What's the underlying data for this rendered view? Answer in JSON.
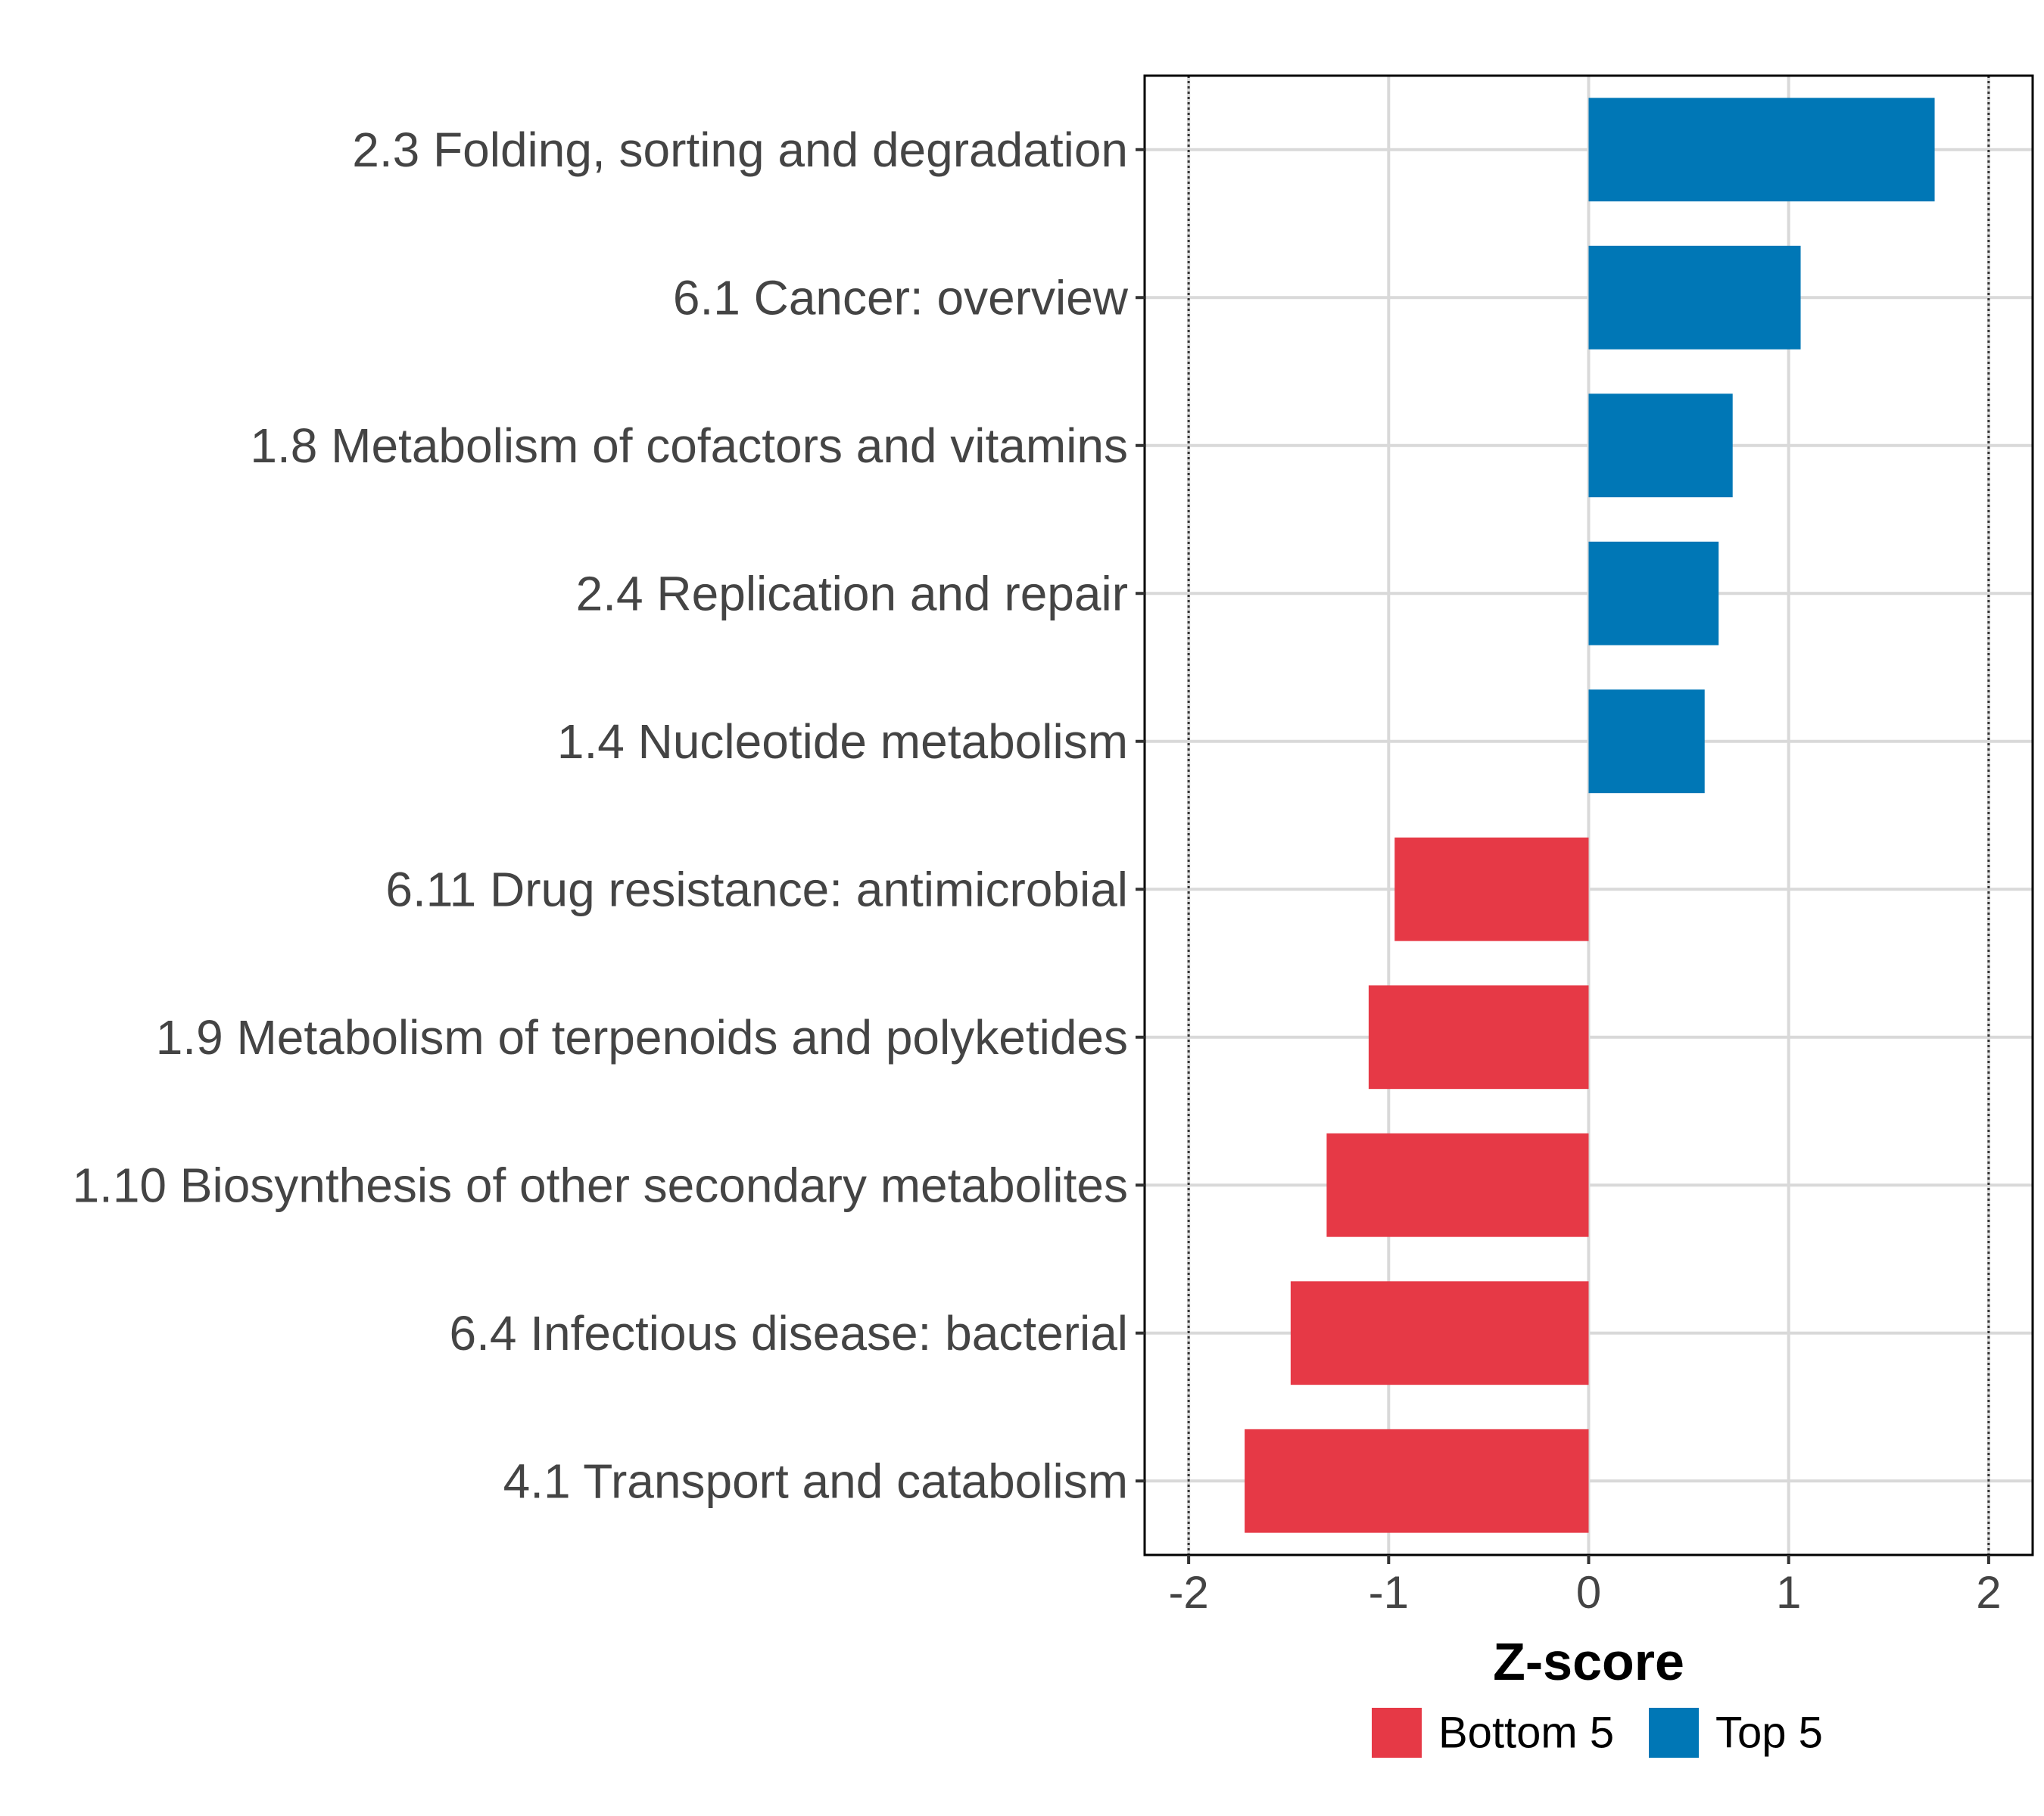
{
  "chart_data": {
    "type": "bar",
    "orientation": "horizontal",
    "title": "",
    "xlabel": "Z-score",
    "ylabel": "",
    "xlim": [
      -2.22,
      2.22
    ],
    "xticks": [
      -2,
      -1,
      0,
      1,
      2
    ],
    "xtick_labels": [
      "-2",
      "-1",
      "0",
      "1",
      "2"
    ],
    "reference_lines": [
      -2,
      2
    ],
    "grid": true,
    "categories": [
      "2.3 Folding, sorting and degradation",
      "6.1 Cancer: overview",
      "1.8 Metabolism of cofactors and vitamins",
      "2.4 Replication and repair",
      "1.4 Nucleotide metabolism",
      "6.11 Drug resistance: antimicrobial",
      "1.9 Metabolism of terpenoids and polyketides",
      "1.10 Biosynthesis of other secondary metabolites",
      "6.4 Infectious disease: bacterial",
      "4.1 Transport and catabolism"
    ],
    "values": [
      1.73,
      1.06,
      0.72,
      0.65,
      0.58,
      -0.97,
      -1.1,
      -1.31,
      -1.49,
      -1.72
    ],
    "groups": [
      "Top 5",
      "Top 5",
      "Top 5",
      "Top 5",
      "Top 5",
      "Bottom 5",
      "Bottom 5",
      "Bottom 5",
      "Bottom 5",
      "Bottom 5"
    ],
    "legend": {
      "position": "bottom",
      "entries": [
        {
          "label": "Bottom 5",
          "color": "#E63946"
        },
        {
          "label": "Top 5",
          "color": "#0077B6"
        }
      ]
    }
  }
}
